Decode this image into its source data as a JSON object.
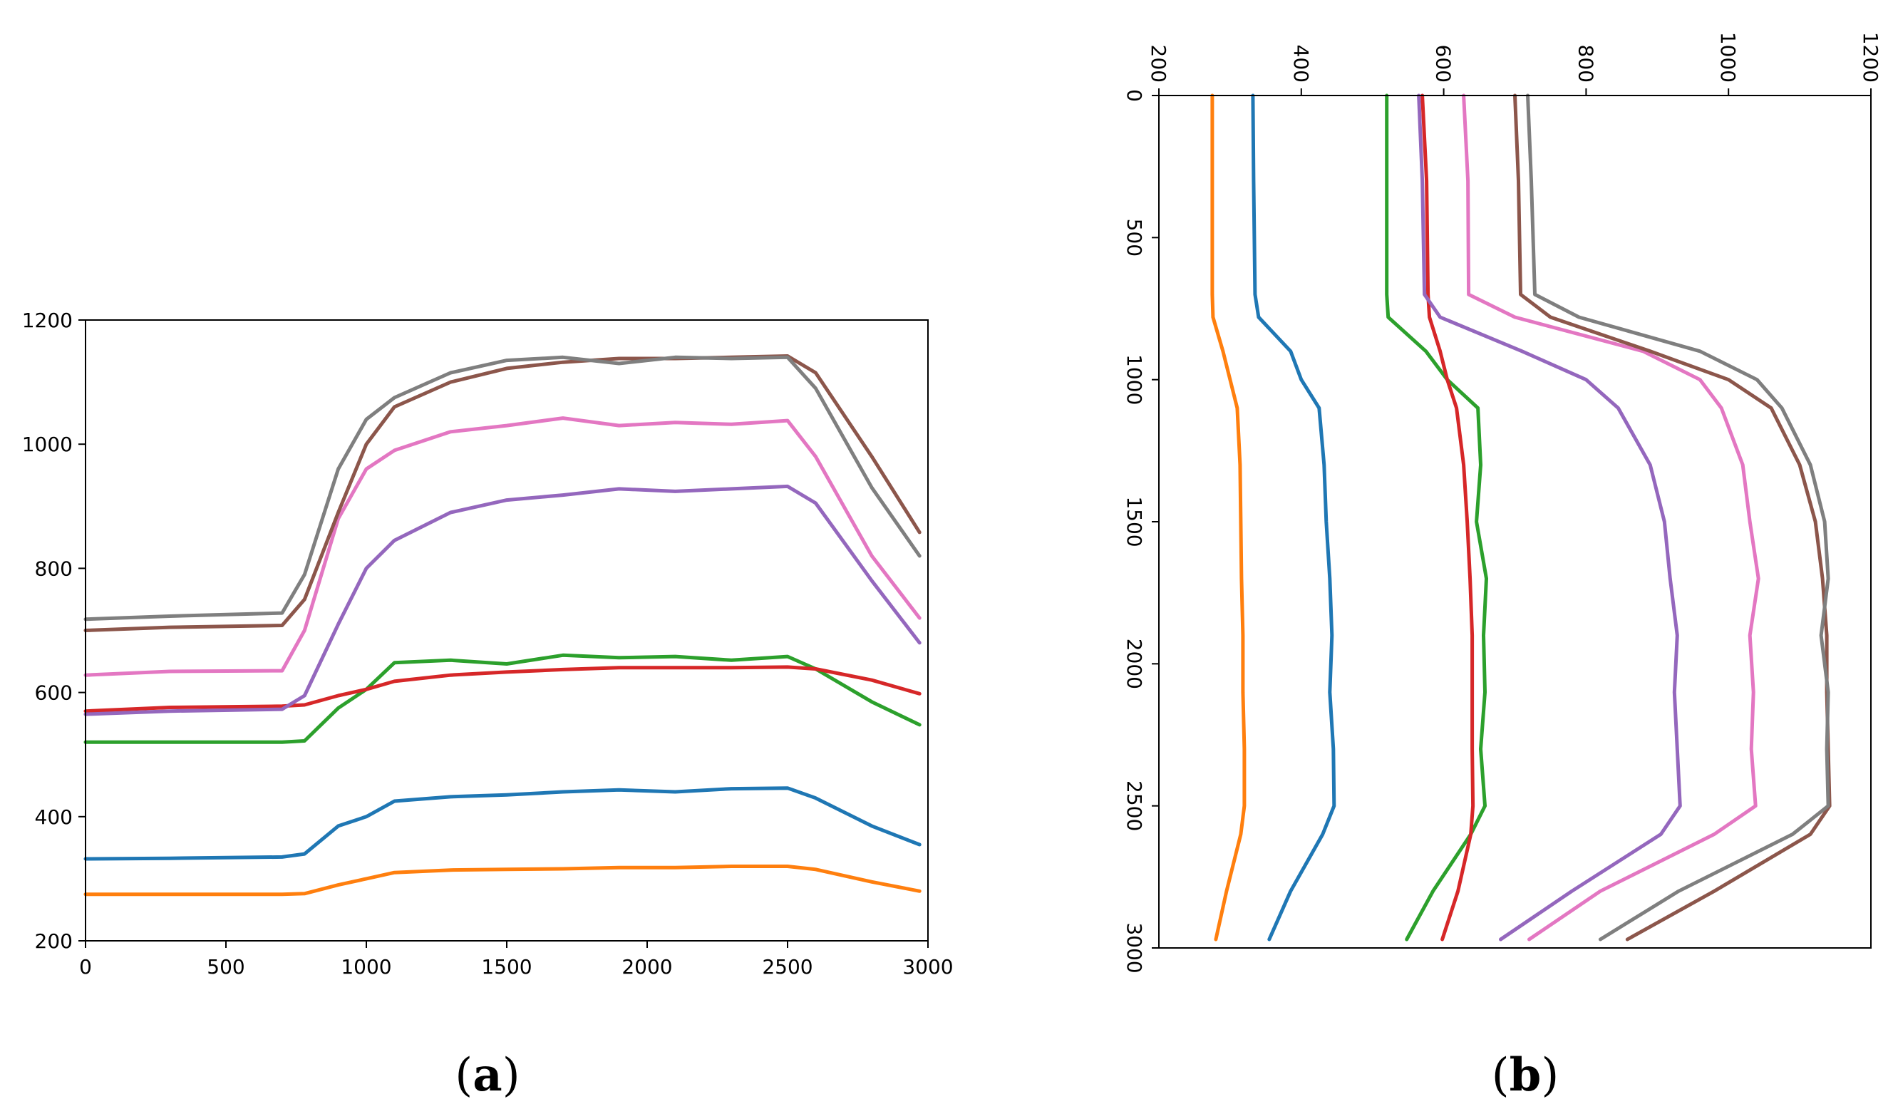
{
  "colors": {
    "blue": "#1f77b4",
    "orange": "#ff7f0e",
    "green": "#2ca02c",
    "red": "#d62728",
    "purple": "#9467bd",
    "brown": "#8c564b",
    "pink": "#e377c2",
    "gray": "#7f7f7f"
  },
  "captions": {
    "a": {
      "open": "(",
      "letter": "a",
      "close": ")"
    },
    "b": {
      "open": "(",
      "letter": "b",
      "close": ")"
    }
  },
  "chart_data": [
    {
      "id": "a",
      "type": "line",
      "title": "",
      "xlabel": "",
      "ylabel": "",
      "xlim": [
        0,
        3000
      ],
      "ylim": [
        200,
        1200
      ],
      "xticks": [
        0,
        500,
        1000,
        1500,
        2000,
        2500,
        3000
      ],
      "yticks": [
        200,
        400,
        600,
        800,
        1000,
        1200
      ],
      "x": [
        0,
        300,
        700,
        780,
        900,
        1000,
        1100,
        1300,
        1500,
        1700,
        1900,
        2100,
        2300,
        2500,
        2600,
        2800,
        2970
      ],
      "series": [
        {
          "name": "orange",
          "color": "#ff7f0e",
          "values": [
            275,
            275,
            275,
            276,
            290,
            300,
            310,
            314,
            315,
            316,
            318,
            318,
            320,
            320,
            315,
            295,
            280
          ]
        },
        {
          "name": "blue",
          "color": "#1f77b4",
          "values": [
            332,
            333,
            335,
            340,
            385,
            400,
            425,
            432,
            435,
            440,
            443,
            440,
            445,
            446,
            430,
            385,
            355
          ]
        },
        {
          "name": "green",
          "color": "#2ca02c",
          "values": [
            520,
            520,
            520,
            522,
            575,
            605,
            648,
            652,
            646,
            660,
            656,
            658,
            652,
            658,
            638,
            585,
            548
          ]
        },
        {
          "name": "red",
          "color": "#d62728",
          "values": [
            570,
            576,
            578,
            580,
            595,
            605,
            618,
            628,
            633,
            637,
            640,
            640,
            640,
            641,
            638,
            620,
            598
          ]
        },
        {
          "name": "purple",
          "color": "#9467bd",
          "values": [
            565,
            570,
            573,
            595,
            710,
            800,
            845,
            890,
            910,
            918,
            928,
            924,
            928,
            932,
            905,
            780,
            680
          ]
        },
        {
          "name": "pink",
          "color": "#e377c2",
          "values": [
            628,
            634,
            635,
            700,
            880,
            960,
            990,
            1020,
            1030,
            1042,
            1030,
            1035,
            1032,
            1038,
            980,
            820,
            720
          ]
        },
        {
          "name": "brown",
          "color": "#8c564b",
          "values": [
            700,
            705,
            708,
            750,
            890,
            1000,
            1060,
            1100,
            1122,
            1132,
            1138,
            1138,
            1140,
            1142,
            1115,
            980,
            858
          ]
        },
        {
          "name": "gray",
          "color": "#7f7f7f",
          "values": [
            718,
            723,
            728,
            790,
            960,
            1040,
            1075,
            1115,
            1135,
            1140,
            1130,
            1140,
            1138,
            1140,
            1090,
            930,
            820
          ]
        }
      ]
    },
    {
      "id": "b",
      "type": "line",
      "title": "",
      "xlabel": "",
      "ylabel": "",
      "xlim": [
        0,
        3000
      ],
      "ylim": [
        200,
        1200
      ],
      "xticks": [
        0,
        500,
        1000,
        1500,
        2000,
        2500,
        3000
      ],
      "yticks": [
        200,
        400,
        600,
        800,
        1000,
        1200
      ],
      "orientation": "rotated 90 degrees clockwise",
      "note": "same data as (a), rendered rotated"
    }
  ]
}
